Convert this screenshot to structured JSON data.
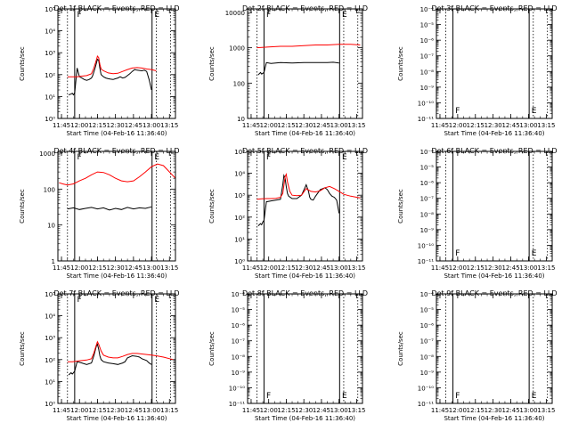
{
  "figure": {
    "background": "#ffffff",
    "colors": {
      "events": "#000000",
      "lld": "#ff0000",
      "axes": "#000000"
    },
    "x_tick_labels": [
      "11:45",
      "12:00",
      "12:15",
      "12:30",
      "12:45",
      "13:00",
      "13:15"
    ],
    "x_tick_minutes": [
      705,
      720,
      735,
      750,
      765,
      780,
      795
    ],
    "x_range_minutes": [
      702,
      800
    ],
    "interval_marks": {
      "solid_minutes": [
        716,
        780.5
      ],
      "dotted_minutes": [
        710,
        784,
        796
      ],
      "lld_segment_minutes": [
        710,
        784
      ],
      "label_minutes": [
        718,
        782.5
      ]
    }
  },
  "chart_data": [
    {
      "type": "line",
      "panel": 1,
      "title": "Det 1f BLACK = Events, RED = LLD",
      "xlabel": "Start Time (04-Feb-16 11:36:40)",
      "ylabel": "Counts/sec",
      "yscale": "log",
      "ylim_exp": [
        0,
        5
      ],
      "y_tick_labels": [
        "10⁰",
        "10¹",
        "10²",
        "10³",
        "10⁴",
        "10⁵"
      ],
      "interval_labels": [
        "F",
        "E"
      ],
      "series": [
        {
          "name": "Events",
          "color": "#000000",
          "x": [
            711,
            713,
            714,
            715,
            716,
            718,
            720,
            722,
            724,
            726,
            728,
            730,
            731,
            733,
            735,
            736,
            737,
            738,
            740,
            742,
            744,
            746,
            748,
            750,
            752,
            754,
            756,
            758,
            760,
            762,
            764,
            766,
            768,
            770,
            772,
            774,
            776,
            778,
            780
          ],
          "y": [
            12,
            13,
            14,
            12,
            15,
            200,
            80,
            70,
            60,
            55,
            60,
            70,
            90,
            200,
            500,
            450,
            200,
            100,
            80,
            70,
            65,
            62,
            60,
            65,
            70,
            80,
            70,
            75,
            90,
            110,
            140,
            170,
            160,
            155,
            150,
            160,
            140,
            60,
            20
          ]
        },
        {
          "name": "LLD",
          "color": "#ff0000",
          "x": [
            710,
            714,
            718,
            722,
            726,
            730,
            732,
            734,
            735,
            736,
            737,
            738,
            740,
            744,
            748,
            752,
            756,
            760,
            764,
            768,
            772,
            776,
            780,
            784
          ],
          "y": [
            80,
            80,
            80,
            85,
            90,
            110,
            200,
            450,
            700,
            600,
            300,
            180,
            150,
            120,
            110,
            115,
            140,
            170,
            200,
            210,
            200,
            180,
            170,
            150
          ]
        }
      ]
    },
    {
      "type": "line",
      "panel": 2,
      "title": "Det 2f BLACK = Events, RED = LLD",
      "xlabel": "Start Time (04-Feb-16 11:36:40)",
      "ylabel": "Counts/sec",
      "yscale": "log",
      "ylim_exp": [
        1,
        4.1
      ],
      "y_tick_labels": [
        "10",
        "100",
        "1000",
        "10000"
      ],
      "interval_labels": [
        "F",
        "E"
      ],
      "series": [
        {
          "name": "Events",
          "color": "#000000",
          "x": [
            711,
            713,
            714,
            715,
            716,
            718,
            722,
            730,
            740,
            750,
            760,
            770,
            775,
            780
          ],
          "y": [
            170,
            200,
            180,
            190,
            200,
            380,
            360,
            380,
            370,
            380,
            380,
            380,
            390,
            370
          ]
        },
        {
          "name": "LLD",
          "color": "#ff0000",
          "x": [
            710,
            720,
            730,
            740,
            750,
            760,
            770,
            780,
            790,
            798
          ],
          "y": [
            1000,
            1050,
            1100,
            1100,
            1150,
            1200,
            1200,
            1250,
            1250,
            1200
          ]
        }
      ]
    },
    {
      "type": "line",
      "panel": 3,
      "title": "Det 3f BLACK = Events, RED = LLD",
      "xlabel": "Start Time (04-Feb-16 11:36:40)",
      "ylabel": "Counts/sec",
      "yscale": "log",
      "ylim_exp": [
        -11,
        -4
      ],
      "y_tick_labels": [
        "10⁻¹¹",
        "10⁻¹⁰",
        "10⁻⁹",
        "10⁻⁸",
        "10⁻⁷",
        "10⁻⁶",
        "10⁻⁵",
        "10⁻⁴"
      ],
      "interval_labels": [
        "F",
        "E"
      ],
      "series": []
    },
    {
      "type": "line",
      "panel": 4,
      "title": "Det 4f BLACK = Events, RED = LLD",
      "xlabel": "Start Time (04-Feb-16 11:36:40)",
      "ylabel": "Counts/sec",
      "yscale": "log",
      "ylim_exp": [
        0,
        3.05
      ],
      "y_tick_labels": [
        "1",
        "10",
        "100",
        "1000"
      ],
      "interval_labels": [
        "F",
        "E"
      ],
      "series": [
        {
          "name": "Events",
          "color": "#000000",
          "x": [
            710,
            715,
            720,
            725,
            730,
            735,
            740,
            745,
            750,
            755,
            760,
            765,
            770,
            775,
            780
          ],
          "y": [
            28,
            30,
            27,
            29,
            31,
            28,
            30,
            26,
            29,
            27,
            31,
            28,
            30,
            29,
            32
          ]
        },
        {
          "name": "LLD",
          "color": "#ff0000",
          "x": [
            703,
            706,
            710,
            715,
            720,
            725,
            730,
            735,
            740,
            745,
            750,
            755,
            760,
            765,
            770,
            775,
            780,
            785,
            790,
            795,
            800
          ],
          "y": [
            150,
            140,
            130,
            140,
            170,
            200,
            250,
            300,
            290,
            250,
            200,
            170,
            160,
            170,
            220,
            300,
            420,
            500,
            450,
            300,
            200
          ]
        }
      ]
    },
    {
      "type": "line",
      "panel": 5,
      "title": "Det 5f BLACK = Events, RED = LLD",
      "xlabel": "Start Time (04-Feb-16 11:36:40)",
      "ylabel": "Counts/sec",
      "yscale": "log",
      "ylim_exp": [
        0,
        5
      ],
      "y_tick_labels": [
        "10⁰",
        "10¹",
        "10²",
        "10³",
        "10⁴",
        "10⁵"
      ],
      "interval_labels": [
        "F",
        "E"
      ],
      "series": [
        {
          "name": "Events",
          "color": "#000000",
          "x": [
            711,
            713,
            714,
            715,
            716,
            718,
            722,
            726,
            730,
            732,
            733,
            734,
            735,
            736,
            737,
            740,
            744,
            748,
            752,
            754,
            755,
            756,
            758,
            760,
            764,
            768,
            770,
            772,
            774,
            776,
            778,
            780
          ],
          "y": [
            40,
            50,
            45,
            60,
            70,
            500,
            550,
            600,
            650,
            3000,
            8000,
            6000,
            2500,
            1200,
            900,
            700,
            700,
            1000,
            3000,
            1500,
            800,
            650,
            600,
            900,
            1800,
            2200,
            1800,
            1200,
            900,
            800,
            600,
            150
          ]
        },
        {
          "name": "LLD",
          "color": "#ff0000",
          "x": [
            710,
            714,
            718,
            722,
            726,
            730,
            732,
            734,
            735,
            736,
            738,
            740,
            744,
            748,
            752,
            756,
            760,
            764,
            768,
            772,
            776,
            780,
            784,
            790,
            798
          ],
          "y": [
            650,
            680,
            700,
            700,
            720,
            800,
            1200,
            7000,
            9000,
            4000,
            1500,
            1000,
            950,
            1000,
            2000,
            1500,
            1400,
            1600,
            2200,
            2500,
            2000,
            1500,
            1100,
            900,
            750
          ]
        }
      ]
    },
    {
      "type": "line",
      "panel": 6,
      "title": "Det 6f BLACK = Events, RED = LLD",
      "xlabel": "Start Time (04-Feb-16 11:36:40)",
      "ylabel": "Counts/sec",
      "yscale": "log",
      "ylim_exp": [
        -11,
        -4
      ],
      "y_tick_labels": [
        "10⁻¹¹",
        "10⁻¹⁰",
        "10⁻⁹",
        "10⁻⁸",
        "10⁻⁷",
        "10⁻⁶",
        "10⁻⁵",
        "10⁻⁴"
      ],
      "interval_labels": [
        "F",
        "E"
      ],
      "series": []
    },
    {
      "type": "line",
      "panel": 7,
      "title": "Det 7f BLACK = Events, RED = LLD",
      "xlabel": "Start Time (04-Feb-16 11:36:40)",
      "ylabel": "Counts/sec",
      "yscale": "log",
      "ylim_exp": [
        0,
        5
      ],
      "y_tick_labels": [
        "10⁰",
        "10¹",
        "10²",
        "10³",
        "10⁴",
        "10⁵"
      ],
      "interval_labels": [
        "F",
        "E"
      ],
      "series": [
        {
          "name": "Events",
          "color": "#000000",
          "x": [
            711,
            713,
            714,
            715,
            716,
            718,
            722,
            726,
            730,
            732,
            734,
            735,
            736,
            737,
            738,
            740,
            744,
            748,
            752,
            756,
            758,
            760,
            764,
            768,
            770,
            772,
            776,
            778,
            780
          ],
          "y": [
            20,
            25,
            22,
            25,
            30,
            80,
            70,
            60,
            70,
            150,
            400,
            500,
            300,
            150,
            100,
            80,
            70,
            65,
            60,
            70,
            80,
            120,
            150,
            140,
            130,
            110,
            90,
            70,
            60
          ]
        },
        {
          "name": "LLD",
          "color": "#ff0000",
          "x": [
            710,
            714,
            718,
            722,
            726,
            730,
            732,
            734,
            735,
            736,
            738,
            740,
            744,
            748,
            752,
            756,
            760,
            764,
            768,
            772,
            776,
            780,
            784,
            790,
            798
          ],
          "y": [
            80,
            80,
            85,
            90,
            95,
            110,
            200,
            450,
            650,
            500,
            250,
            160,
            130,
            120,
            120,
            140,
            170,
            190,
            190,
            180,
            170,
            160,
            150,
            130,
            100
          ]
        }
      ]
    },
    {
      "type": "line",
      "panel": 8,
      "title": "Det 8f BLACK = Events, RED = LLD",
      "xlabel": "Start Time (04-Feb-16 11:36:40)",
      "ylabel": "Counts/sec",
      "yscale": "log",
      "ylim_exp": [
        -11,
        -4
      ],
      "y_tick_labels": [
        "10⁻¹¹",
        "10⁻¹⁰",
        "10⁻⁹",
        "10⁻⁸",
        "10⁻⁷",
        "10⁻⁶",
        "10⁻⁵",
        "10⁻⁴"
      ],
      "interval_labels": [
        "F",
        "E"
      ],
      "series": []
    },
    {
      "type": "line",
      "panel": 9,
      "title": "Det 9f BLACK = Events, RED = LLD",
      "xlabel": "Start Time (04-Feb-16 11:36:40)",
      "ylabel": "Counts/sec",
      "yscale": "log",
      "ylim_exp": [
        -11,
        -4
      ],
      "y_tick_labels": [
        "10⁻¹¹",
        "10⁻¹⁰",
        "10⁻⁹",
        "10⁻⁸",
        "10⁻⁷",
        "10⁻⁶",
        "10⁻⁵",
        "10⁻⁴"
      ],
      "interval_labels": [
        "F",
        "E"
      ],
      "series": []
    }
  ]
}
